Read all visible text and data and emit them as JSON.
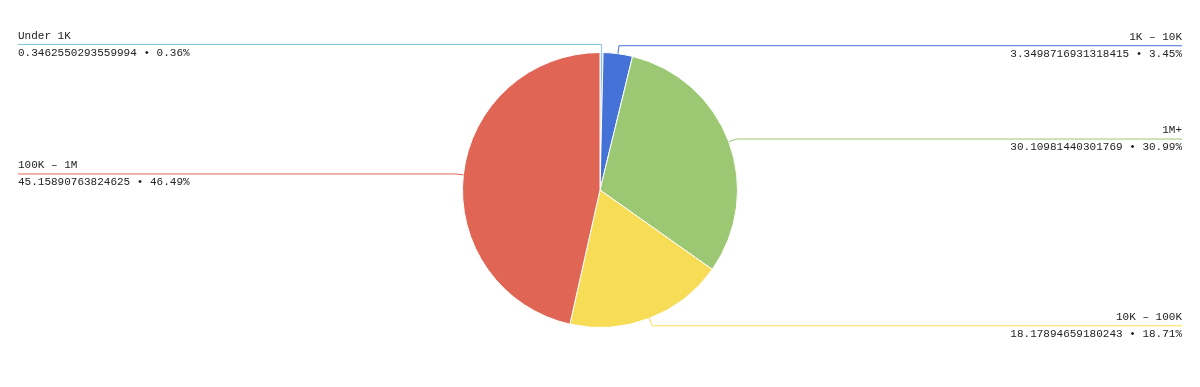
{
  "chart_data": {
    "type": "pie",
    "categories": [
      "Under 1K",
      "1K – 10K",
      "1M+",
      "10K – 100K",
      "100K – 1M"
    ],
    "values": [
      0.3462550293559994,
      3.3498716931318415,
      30.10981440301769,
      18.17894659180243,
      45.15890763824625
    ],
    "colors": [
      "#86c5e0",
      "#4472d6",
      "#9cc773",
      "#f7dc56",
      "#e06555"
    ],
    "value_labels": [
      "0.3462550293559994 • 0.36%",
      "3.3498716931318415 • 3.45%",
      "30.10981440301769 • 30.99%",
      "18.17894659180243 • 18.71%",
      "45.15890763824625 • 46.49%"
    ],
    "legend": false
  }
}
